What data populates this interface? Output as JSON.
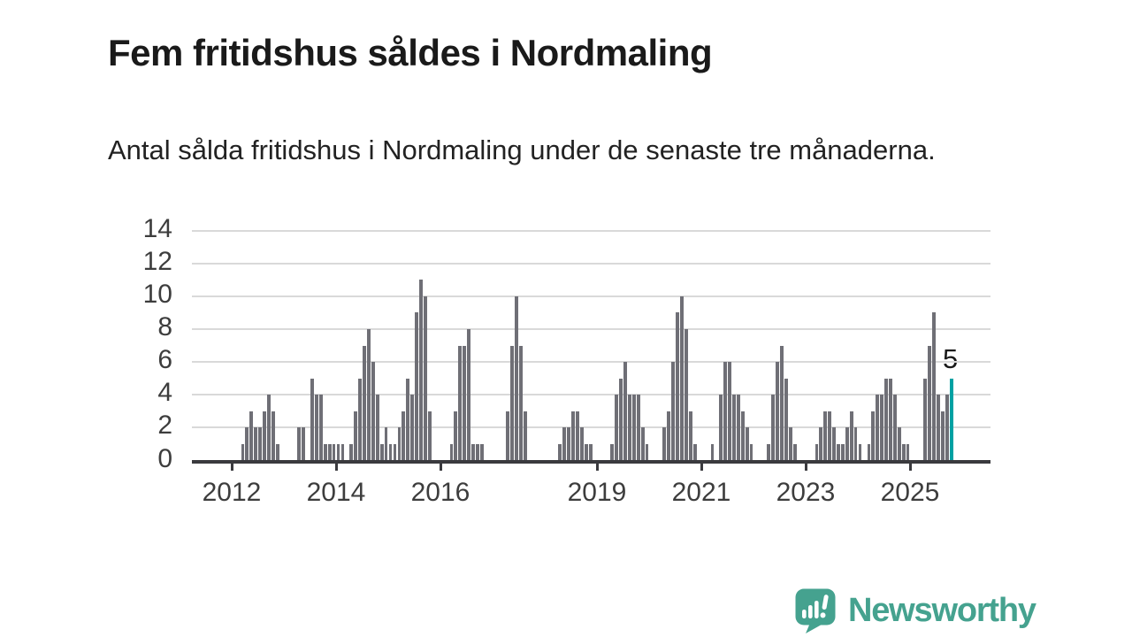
{
  "header": {
    "title": "Fem fritidshus såldes i Nordmaling",
    "subtitle": "Antal sålda fritidshus i Nordmaling under de senaste tre månaderna."
  },
  "chart_data": {
    "type": "bar",
    "title": "Fem fritidshus såldes i Nordmaling",
    "subtitle": "Antal sålda fritidshus i Nordmaling under de senaste tre månaderna.",
    "frequency": "monthly",
    "x_start_month": "2012-01",
    "x_end_month": "2025-10",
    "values": [
      0,
      0,
      1,
      2,
      3,
      2,
      2,
      3,
      4,
      3,
      1,
      0,
      0,
      0,
      0,
      2,
      2,
      0,
      5,
      4,
      4,
      1,
      1,
      1,
      1,
      1,
      0,
      1,
      3,
      5,
      7,
      8,
      6,
      4,
      1,
      2,
      1,
      1,
      2,
      3,
      5,
      4,
      9,
      11,
      10,
      3,
      0,
      0,
      0,
      0,
      1,
      3,
      7,
      7,
      8,
      1,
      1,
      1,
      0,
      0,
      0,
      0,
      0,
      3,
      7,
      10,
      7,
      3,
      0,
      0,
      0,
      0,
      0,
      0,
      0,
      1,
      2,
      2,
      3,
      3,
      2,
      1,
      1,
      0,
      0,
      0,
      0,
      1,
      4,
      5,
      6,
      4,
      4,
      4,
      2,
      1,
      0,
      0,
      0,
      2,
      3,
      6,
      9,
      10,
      8,
      3,
      1,
      0,
      0,
      0,
      1,
      0,
      4,
      6,
      6,
      4,
      4,
      3,
      2,
      1,
      0,
      0,
      0,
      1,
      4,
      6,
      7,
      5,
      2,
      1,
      0,
      0,
      0,
      0,
      1,
      2,
      3,
      3,
      2,
      1,
      1,
      2,
      3,
      2,
      1,
      0,
      1,
      3,
      4,
      4,
      5,
      5,
      4,
      2,
      1,
      1,
      0,
      0,
      0,
      5,
      7,
      9,
      4,
      3,
      4,
      5
    ],
    "highlight_value": 5,
    "annotation_label": "5",
    "ylim": [
      0,
      14
    ],
    "y_ticks": [
      0,
      2,
      4,
      6,
      8,
      10,
      12,
      14
    ],
    "x_tick_labels": [
      "2012",
      "2014",
      "2016",
      "2019",
      "2021",
      "2023",
      "2025"
    ],
    "x_tick_years": [
      2012,
      2014,
      2016,
      2019,
      2021,
      2023,
      2025
    ],
    "grid": "horizontal",
    "legend": "none",
    "bar_color": "#6f6f76",
    "highlight_color": "#00a1a3"
  },
  "logo": {
    "text": "Newsworthy",
    "color": "#45a28f"
  }
}
